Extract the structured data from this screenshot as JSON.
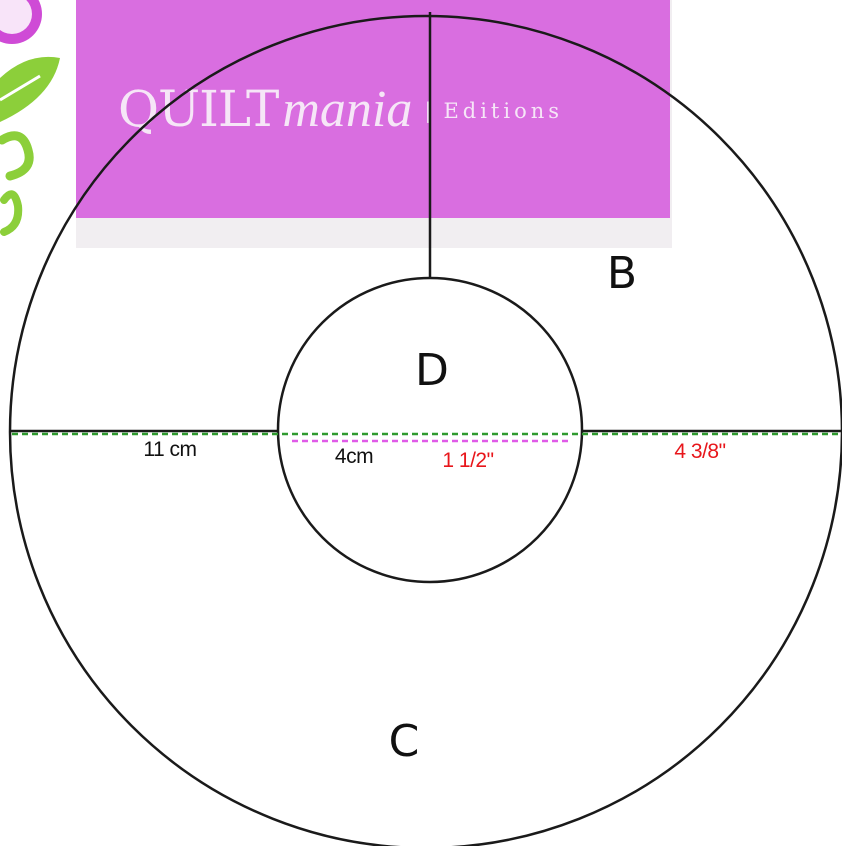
{
  "logo": {
    "brand": "QUILT",
    "script": "mania",
    "separator": "|",
    "suffix": "Editions",
    "background_color": "#d96ee0",
    "text_color": "#f6e6f7"
  },
  "pieces": {
    "outer_top_right": "B",
    "center": "D",
    "outer_bottom": "C"
  },
  "measurements": {
    "outer_band_metric": "11 cm",
    "inner_radius_metric": "4cm",
    "inner_radius_imperial": "1 1/2\"",
    "outer_band_imperial": "4 3/8\""
  },
  "colors": {
    "outline": "#1a1a1a",
    "metric_text": "#111111",
    "imperial_text": "#e8161b",
    "band_dash": "#2f9a2f",
    "radius_dash": "#e05be8",
    "corner_green": "#8ccf3a"
  }
}
